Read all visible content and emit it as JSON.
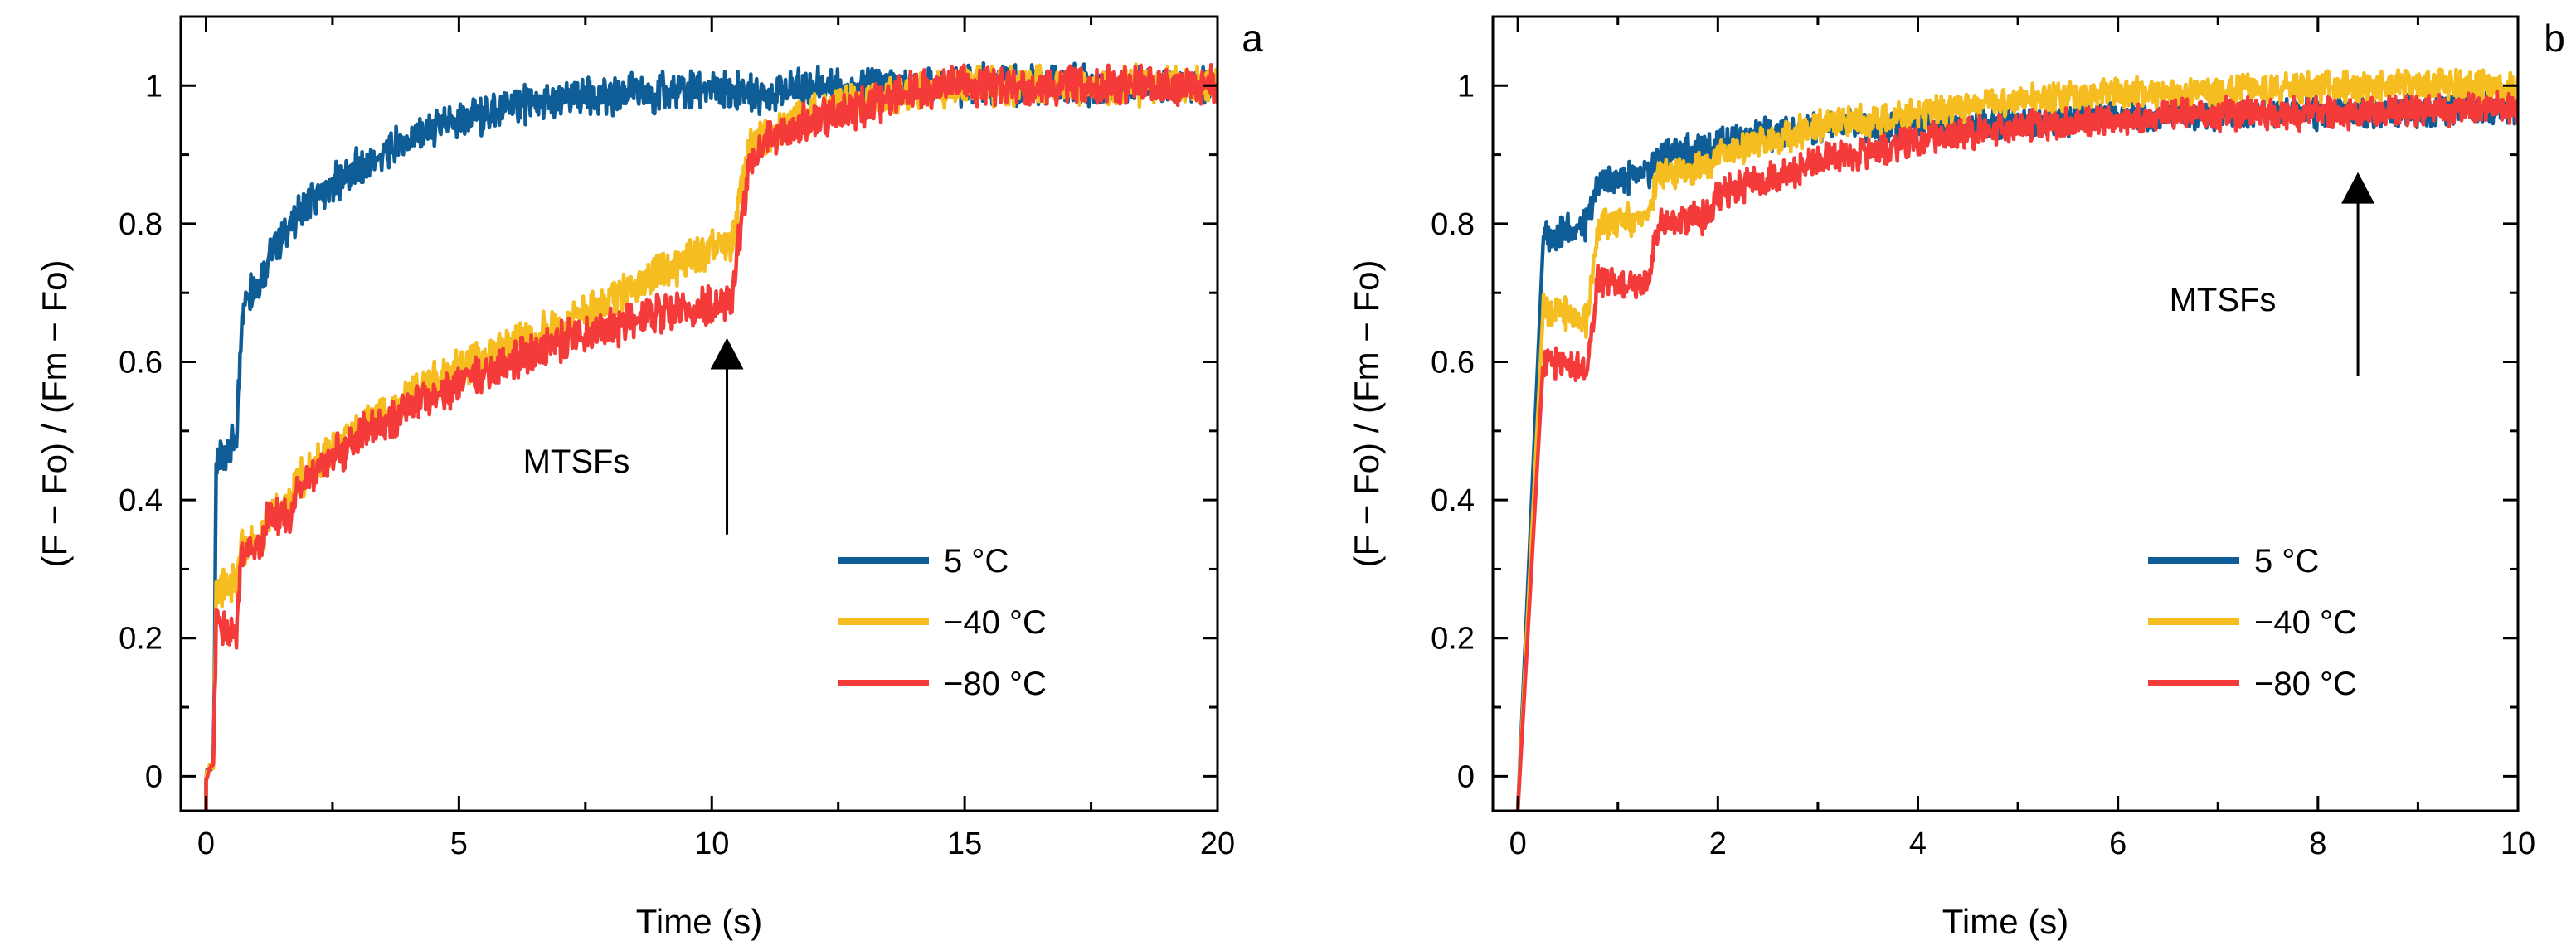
{
  "chart_data": [
    {
      "type": "line",
      "panel_label": "a",
      "xlabel": "Time (s)",
      "ylabel": "(F − Fo) / (Fm − Fo)",
      "xlim": [
        -0.5,
        20
      ],
      "ylim": [
        -0.05,
        1.1
      ],
      "xticks": [
        0,
        5,
        10,
        15,
        20
      ],
      "yticks": [
        0,
        0.2,
        0.4,
        0.6,
        0.8,
        1
      ],
      "ytick_labels": [
        "0",
        "0.2",
        "0.4",
        "0.6",
        "0.8",
        "1"
      ],
      "legend": {
        "position": "bottom-right"
      },
      "annotation": {
        "text": "MTSFs",
        "arrow_x": 10.3,
        "arrow_y_start": 0.35,
        "arrow_y_end": 0.63
      },
      "series": [
        {
          "name": "5 °C",
          "color": "#0f5d96",
          "x": [
            0,
            0.15,
            0.2,
            0.3,
            0.6,
            0.7,
            0.8,
            1.0,
            1.3,
            2,
            3,
            4,
            5,
            6,
            7,
            8,
            9,
            10,
            11,
            12,
            13,
            14,
            15,
            16,
            17,
            18,
            19,
            20
          ],
          "y": [
            0,
            0.02,
            0.44,
            0.47,
            0.48,
            0.66,
            0.7,
            0.71,
            0.76,
            0.83,
            0.88,
            0.92,
            0.95,
            0.97,
            0.98,
            0.985,
            0.99,
            0.995,
            0.99,
            1.0,
            1.0,
            1.0,
            1.0,
            1.0,
            1.0,
            1.0,
            1.0,
            1.0
          ]
        },
        {
          "name": "−40 °C",
          "color": "#f5bd1f",
          "x": [
            0,
            0.15,
            0.2,
            0.6,
            0.7,
            1.1,
            1.2,
            1.7,
            1.8,
            2,
            3,
            4,
            5,
            6,
            7,
            8,
            9,
            10,
            10.4,
            10.7,
            11,
            12,
            13,
            14,
            15,
            16,
            17,
            18,
            19,
            20
          ],
          "y": [
            0,
            0.02,
            0.27,
            0.28,
            0.33,
            0.34,
            0.38,
            0.39,
            0.43,
            0.44,
            0.5,
            0.55,
            0.59,
            0.62,
            0.65,
            0.69,
            0.73,
            0.76,
            0.77,
            0.9,
            0.93,
            0.96,
            0.98,
            0.99,
            1.0,
            1.0,
            1.0,
            1.0,
            1.0,
            1.0
          ]
        },
        {
          "name": "−80 °C",
          "color": "#f53a3a",
          "x": [
            0,
            0.15,
            0.2,
            0.6,
            0.7,
            1.1,
            1.2,
            1.7,
            1.8,
            2,
            3,
            4,
            5,
            6,
            7,
            8,
            9,
            10,
            10.4,
            10.7,
            11,
            12,
            13,
            14,
            15,
            16,
            17,
            18,
            19,
            20
          ],
          "y": [
            0,
            0.02,
            0.22,
            0.21,
            0.32,
            0.33,
            0.37,
            0.38,
            0.42,
            0.43,
            0.49,
            0.53,
            0.57,
            0.6,
            0.63,
            0.65,
            0.67,
            0.68,
            0.69,
            0.87,
            0.92,
            0.95,
            0.97,
            0.99,
            1.0,
            1.0,
            1.0,
            1.0,
            1.0,
            1.0
          ]
        }
      ]
    },
    {
      "type": "line",
      "panel_label": "b",
      "xlabel": "Time (s)",
      "ylabel": "(F − Fo) / (Fm − Fo)",
      "xlim": [
        -0.25,
        10
      ],
      "ylim": [
        -0.05,
        1.1
      ],
      "xticks": [
        0,
        2,
        4,
        6,
        8,
        10
      ],
      "yticks": [
        0,
        0.2,
        0.4,
        0.6,
        0.8,
        1
      ],
      "ytick_labels": [
        "0",
        "0.2",
        "0.4",
        "0.6",
        "0.8",
        "1"
      ],
      "legend": {
        "position": "bottom-right"
      },
      "annotation": {
        "text": "MTSFs",
        "arrow_x": 8.4,
        "arrow_y_start": 0.58,
        "arrow_y_end": 0.87
      },
      "series": [
        {
          "name": "5 °C",
          "color": "#0f5d96",
          "x": [
            0,
            0.2,
            0.25,
            0.7,
            0.8,
            1.3,
            1.4,
            1.9,
            2,
            3,
            4,
            5,
            6,
            7,
            8,
            9,
            10
          ],
          "y": [
            0,
            0.03,
            0.78,
            0.8,
            0.86,
            0.87,
            0.9,
            0.91,
            0.92,
            0.94,
            0.945,
            0.95,
            0.955,
            0.96,
            0.96,
            0.965,
            0.97
          ]
        },
        {
          "name": "−40 °C",
          "color": "#f5bd1f",
          "x": [
            0,
            0.2,
            0.25,
            0.7,
            0.8,
            1.3,
            1.4,
            1.9,
            2,
            3,
            4,
            5,
            6,
            7,
            8,
            9,
            10
          ],
          "y": [
            0,
            0.02,
            0.68,
            0.66,
            0.8,
            0.81,
            0.87,
            0.88,
            0.9,
            0.94,
            0.96,
            0.98,
            0.99,
            0.99,
            1.0,
            1.0,
            1.0
          ]
        },
        {
          "name": "−80 °C",
          "color": "#f53a3a",
          "x": [
            0,
            0.2,
            0.25,
            0.7,
            0.8,
            1.3,
            1.4,
            1.9,
            2,
            3,
            4,
            5,
            6,
            7,
            8,
            9,
            10
          ],
          "y": [
            0,
            0.02,
            0.6,
            0.59,
            0.72,
            0.71,
            0.8,
            0.81,
            0.84,
            0.89,
            0.92,
            0.94,
            0.95,
            0.96,
            0.96,
            0.965,
            0.97
          ]
        }
      ]
    }
  ]
}
